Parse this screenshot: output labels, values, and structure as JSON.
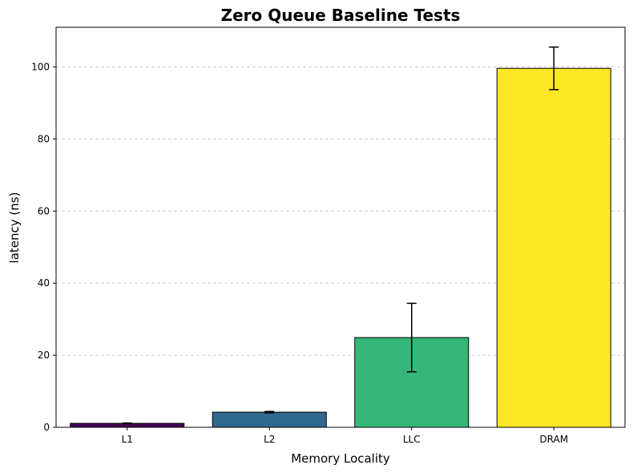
{
  "chart_data": {
    "type": "bar",
    "title": "Zero Queue Baseline Tests",
    "xlabel": "Memory Locality",
    "ylabel": "latency (ns)",
    "categories": [
      "L1",
      "L2",
      "LLC",
      "DRAM"
    ],
    "values": [
      1.1,
      4.2,
      24.9,
      99.6
    ],
    "errors": [
      0.1,
      0.2,
      9.5,
      5.9
    ],
    "bar_colors": [
      "#440154",
      "#31688e",
      "#35b779",
      "#fde725"
    ],
    "edge_color": "#000000",
    "ylim": [
      0,
      111
    ],
    "yticks": [
      0,
      20,
      40,
      60,
      80,
      100
    ],
    "grid": "y-dashed"
  }
}
